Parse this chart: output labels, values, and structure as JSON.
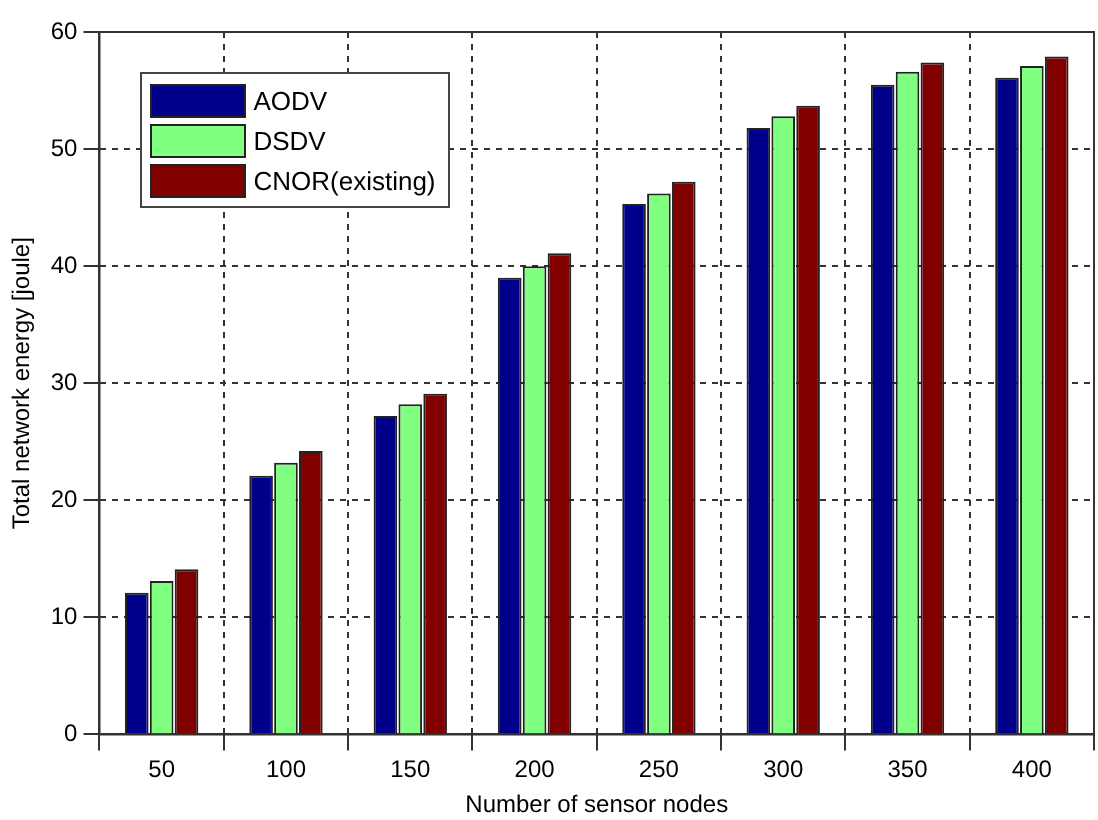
{
  "chart_data": {
    "type": "bar",
    "xlabel": "Number of sensor nodes",
    "ylabel": "Total network energy [joule]",
    "categories": [
      "50",
      "100",
      "150",
      "200",
      "250",
      "300",
      "350",
      "400"
    ],
    "series": [
      {
        "name": "AODV",
        "color": "#00008b",
        "values": [
          12.1,
          22.1,
          27.2,
          39.0,
          45.3,
          51.8,
          55.5,
          56.1
        ]
      },
      {
        "name": "DSDV",
        "color": "#80ff80",
        "values": [
          13.1,
          23.2,
          28.2,
          40.0,
          46.2,
          52.8,
          56.6,
          57.1
        ]
      },
      {
        "name": "CNOR(existing)",
        "color": "#800000",
        "values": [
          14.1,
          24.2,
          29.1,
          41.1,
          47.2,
          53.7,
          57.4,
          57.9
        ]
      }
    ],
    "ylim": [
      0,
      60
    ],
    "yticks": [
      0,
      10,
      20,
      30,
      40,
      50,
      60
    ],
    "grid": true,
    "legend": "top left"
  }
}
